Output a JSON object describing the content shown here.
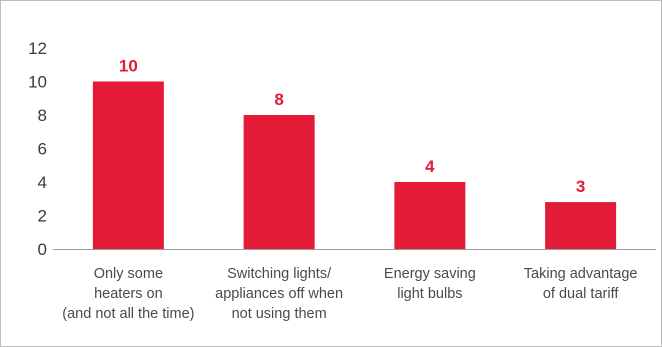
{
  "chart_data": {
    "type": "bar",
    "title": "",
    "xlabel": "",
    "ylabel": "",
    "categories": [
      [
        "Only some",
        "heaters on",
        "(and not all the time)"
      ],
      [
        "Switching lights/",
        "appliances off when",
        "not using them"
      ],
      [
        "Energy saving",
        "light bulbs"
      ],
      [
        "Taking advantage",
        "of dual tariff"
      ]
    ],
    "values": [
      10,
      8,
      4,
      3
    ],
    "data_labels": [
      "10",
      "8",
      "4",
      "3"
    ],
    "bar_heights": [
      10,
      8,
      4,
      2.8
    ],
    "ylim": [
      0,
      12
    ],
    "yticks": [
      0,
      2,
      4,
      6,
      8,
      10,
      12
    ],
    "grid": false,
    "legend": "none",
    "bar_color": "#e31b37",
    "label_color": "#e31b37"
  }
}
